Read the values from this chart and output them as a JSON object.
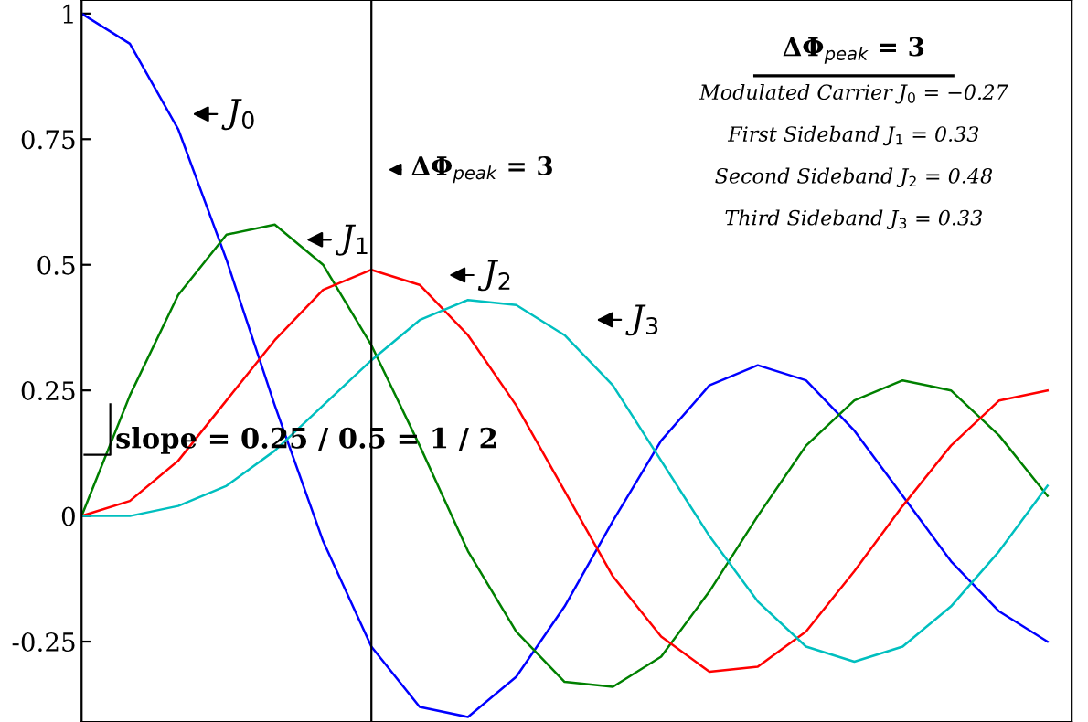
{
  "chart_data": {
    "type": "line",
    "categories": [
      null,
      null,
      null,
      null,
      null,
      null,
      null,
      null,
      null,
      null,
      null,
      null,
      null,
      null,
      null,
      null,
      null,
      null,
      null,
      null,
      null
    ],
    "series": [
      {
        "color": "#0000ff",
        "values": [
          1,
          0.94,
          0.77,
          0.51,
          0.22,
          -0.05,
          -0.26,
          -0.38,
          -0.4,
          -0.32,
          -0.18,
          -0.01,
          0.15,
          0.26,
          0.3,
          0.27,
          0.17,
          0.04,
          -0.09,
          -0.19,
          -0.25
        ]
      },
      {
        "color": "#008000",
        "values": [
          0,
          0.24,
          0.44,
          0.56,
          0.58,
          0.5,
          0.34,
          0.14,
          -0.07,
          -0.23,
          -0.33,
          -0.34,
          -0.28,
          -0.15,
          0,
          0.14,
          0.23,
          0.27,
          0.25,
          0.16,
          0.04
        ]
      },
      {
        "color": "#ff0000",
        "values": [
          0,
          0.03,
          0.11,
          0.23,
          0.35,
          0.45,
          0.49,
          0.46,
          0.36,
          0.22,
          0.05,
          -0.12,
          -0.24,
          -0.31,
          -0.3,
          -0.23,
          -0.11,
          0.02,
          0.14,
          0.23,
          0.25
        ]
      },
      {
        "color": "#00bfbf",
        "values": [
          0,
          0,
          0.02,
          0.06,
          0.13,
          0.22,
          0.31,
          0.39,
          0.43,
          0.42,
          0.36,
          0.26,
          0.11,
          -0.04,
          -0.17,
          -0.26,
          -0.29,
          -0.26,
          -0.18,
          -0.07,
          0.06
        ]
      }
    ],
    "ylim": [
      -0.41,
      1.027
    ],
    "yticks": [
      1,
      0.75,
      0.5,
      0.25,
      0,
      -0.25
    ],
    "tick_labels": "y",
    "ref_lines": [
      {
        "axis": "x",
        "label": "ΔΦ$_{peak}$ = 3",
        "color": "#000000"
      }
    ],
    "annotations": [
      "J$_{0}$",
      "J$_{1}$",
      "J$_{2}$",
      "J$_{3}$",
      "slope = 0.25 / 0.5 = 1 / 2",
      "ΔΦ$_{peak}$ = 3",
      "Modulated Carrier J$_{0}$ = −0.27",
      "First Sideband J$_{1}$ = 0.33",
      "Second Sideband J$_{2}$ = 0.48",
      "Third Sideband J$_{3}$ = 0.33"
    ],
    "grid": false,
    "legend": false
  }
}
